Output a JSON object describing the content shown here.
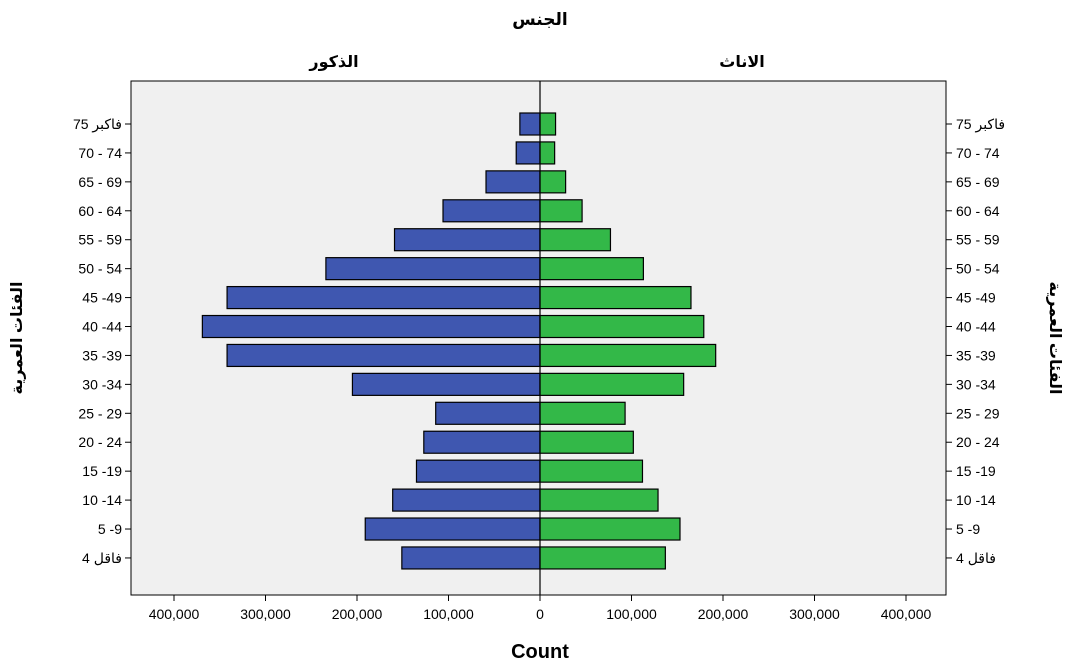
{
  "chart_data": {
    "type": "bar",
    "title": "الجنس",
    "xlabel": "Count",
    "ylabel": "الفئات العمرية",
    "xlim": [
      0,
      400000
    ],
    "x_ticks": [
      "400,000",
      "300,000",
      "200,000",
      "100,000",
      "0",
      "100,000",
      "200,000",
      "300,000",
      "400,000"
    ],
    "categories": [
      "75 فاكبر",
      "70 - 74",
      "65 - 69",
      "60 - 64",
      "55 - 59",
      "50 - 54",
      "45 -49",
      "40 -44",
      "35 -39",
      "30 -34",
      "25 - 29",
      "20 - 24",
      "15 -19",
      "10 -14",
      "5 -9",
      "4 فاقل"
    ],
    "series": [
      {
        "name": "الذكور",
        "color": "#3f57b0",
        "values": [
          22000,
          26000,
          59000,
          106000,
          159000,
          234000,
          342000,
          369000,
          342000,
          205000,
          114000,
          127000,
          135000,
          161000,
          191000,
          151000
        ]
      },
      {
        "name": "الاناث",
        "color": "#33b848",
        "values": [
          17000,
          16000,
          28000,
          46000,
          77000,
          113000,
          165000,
          179000,
          192000,
          157000,
          93000,
          102000,
          112000,
          129000,
          153000,
          137000
        ]
      }
    ],
    "grid": false,
    "background": "#f0f0f0"
  }
}
